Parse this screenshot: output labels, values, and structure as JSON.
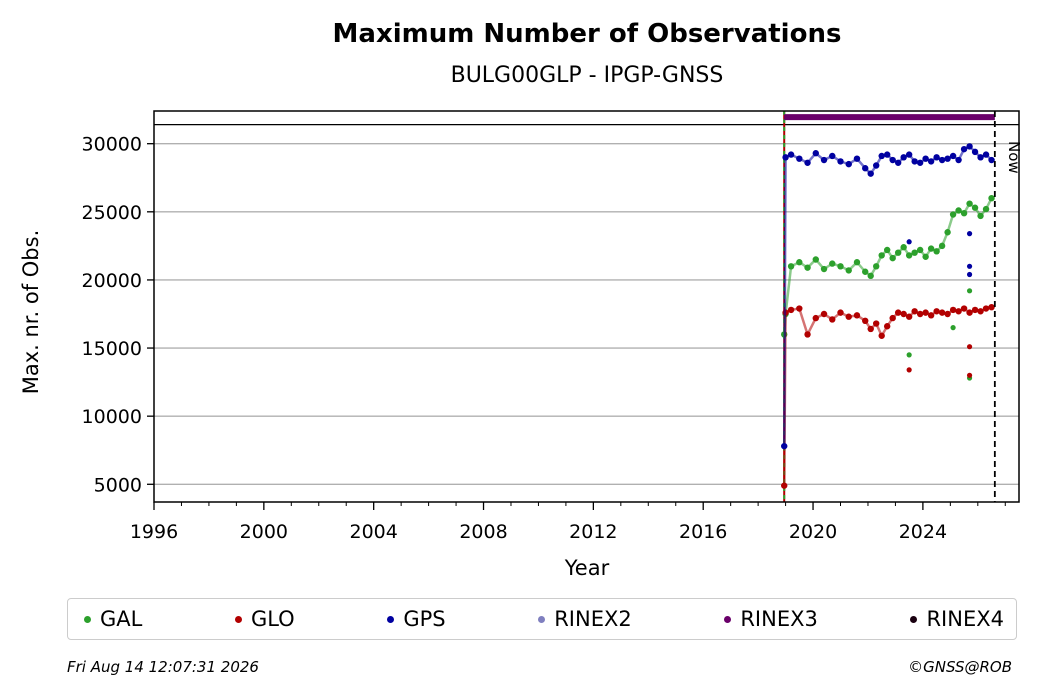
{
  "chart_data": {
    "type": "scatter",
    "title": "Maximum Number of Observations",
    "subtitle": "BULG00GLP - IPGP-GNSS",
    "xlabel": "Year",
    "ylabel": "Max. nr. of Obs.",
    "xlim": [
      1996,
      2027.5
    ],
    "ylim": [
      3700,
      32400
    ],
    "xticks": [
      1996,
      2000,
      2004,
      2008,
      2012,
      2016,
      2020,
      2024
    ],
    "yticks": [
      5000,
      10000,
      15000,
      20000,
      25000,
      30000
    ],
    "grid": "horizontal",
    "legend_position": "bottom",
    "now_label": "Now",
    "now_year": 2026.62,
    "station_start_year": 2018.95,
    "series": [
      {
        "name": "GAL",
        "color": "#2ca02c",
        "x": [
          2018.95,
          2019.0,
          2019.2,
          2019.5,
          2019.8,
          2020.1,
          2020.4,
          2020.7,
          2021.0,
          2021.3,
          2021.6,
          2021.9,
          2022.1,
          2022.3,
          2022.5,
          2022.7,
          2022.9,
          2023.1,
          2023.3,
          2023.5,
          2023.7,
          2023.9,
          2024.1,
          2024.3,
          2024.5,
          2024.7,
          2024.9,
          2025.1,
          2025.3,
          2025.5,
          2025.7,
          2025.9,
          2026.1,
          2026.3,
          2026.5
        ],
        "y": [
          16000,
          17500,
          21000,
          21300,
          20900,
          21500,
          20800,
          21200,
          21000,
          20700,
          21300,
          20600,
          20300,
          21000,
          21800,
          22200,
          21600,
          22000,
          22400,
          21800,
          22000,
          22200,
          21700,
          22300,
          22100,
          22500,
          23500,
          24800,
          25100,
          24900,
          25600,
          25300,
          24700,
          25200,
          26000
        ],
        "outliers": [
          [
            2023.5,
            14500
          ],
          [
            2025.1,
            16500
          ],
          [
            2025.7,
            12800
          ],
          [
            2025.7,
            19200
          ]
        ]
      },
      {
        "name": "GLO",
        "color": "#b20000",
        "x": [
          2018.95,
          2019.0,
          2019.2,
          2019.5,
          2019.8,
          2020.1,
          2020.4,
          2020.7,
          2021.0,
          2021.3,
          2021.6,
          2021.9,
          2022.1,
          2022.3,
          2022.5,
          2022.7,
          2022.9,
          2023.1,
          2023.3,
          2023.5,
          2023.7,
          2023.9,
          2024.1,
          2024.3,
          2024.5,
          2024.7,
          2024.9,
          2025.1,
          2025.3,
          2025.5,
          2025.7,
          2025.9,
          2026.1,
          2026.3,
          2026.5
        ],
        "y": [
          4900,
          17600,
          17800,
          17900,
          16000,
          17200,
          17500,
          17100,
          17600,
          17300,
          17400,
          17000,
          16400,
          16800,
          15900,
          16600,
          17200,
          17600,
          17500,
          17300,
          17700,
          17500,
          17600,
          17400,
          17700,
          17600,
          17500,
          17800,
          17700,
          17900,
          17600,
          17800,
          17700,
          17900,
          18000
        ],
        "outliers": [
          [
            2023.5,
            13400
          ],
          [
            2025.7,
            15100
          ],
          [
            2025.7,
            13000
          ]
        ]
      },
      {
        "name": "GPS",
        "color": "#0000a0",
        "x": [
          2018.95,
          2019.0,
          2019.2,
          2019.5,
          2019.8,
          2020.1,
          2020.4,
          2020.7,
          2021.0,
          2021.3,
          2021.6,
          2021.9,
          2022.1,
          2022.3,
          2022.5,
          2022.7,
          2022.9,
          2023.1,
          2023.3,
          2023.5,
          2023.7,
          2023.9,
          2024.1,
          2024.3,
          2024.5,
          2024.7,
          2024.9,
          2025.1,
          2025.3,
          2025.5,
          2025.7,
          2025.9,
          2026.1,
          2026.3,
          2026.5
        ],
        "y": [
          7800,
          29000,
          29200,
          28900,
          28600,
          29300,
          28800,
          29100,
          28700,
          28500,
          28900,
          28200,
          27800,
          28400,
          29100,
          29200,
          28800,
          28600,
          29000,
          29200,
          28700,
          28600,
          28900,
          28700,
          29000,
          28800,
          28900,
          29100,
          28800,
          29600,
          29800,
          29400,
          29000,
          29200,
          28800
        ],
        "outliers": [
          [
            2023.5,
            22800
          ],
          [
            2025.7,
            23400
          ],
          [
            2025.7,
            20400
          ],
          [
            2025.7,
            21000
          ]
        ]
      },
      {
        "name": "RINEX2",
        "color": "#7f7fbf",
        "x": [],
        "y": []
      },
      {
        "name": "RINEX3",
        "color": "#6a006a",
        "x": [
          2018.95,
          2026.62
        ],
        "y": [
          31950,
          31950
        ]
      },
      {
        "name": "RINEX4",
        "color": "#1a0010",
        "x": [],
        "y": []
      }
    ]
  },
  "footer": {
    "timestamp": "Fri Aug 14 12:07:31 2026",
    "credit": "©GNSS@ROB"
  }
}
